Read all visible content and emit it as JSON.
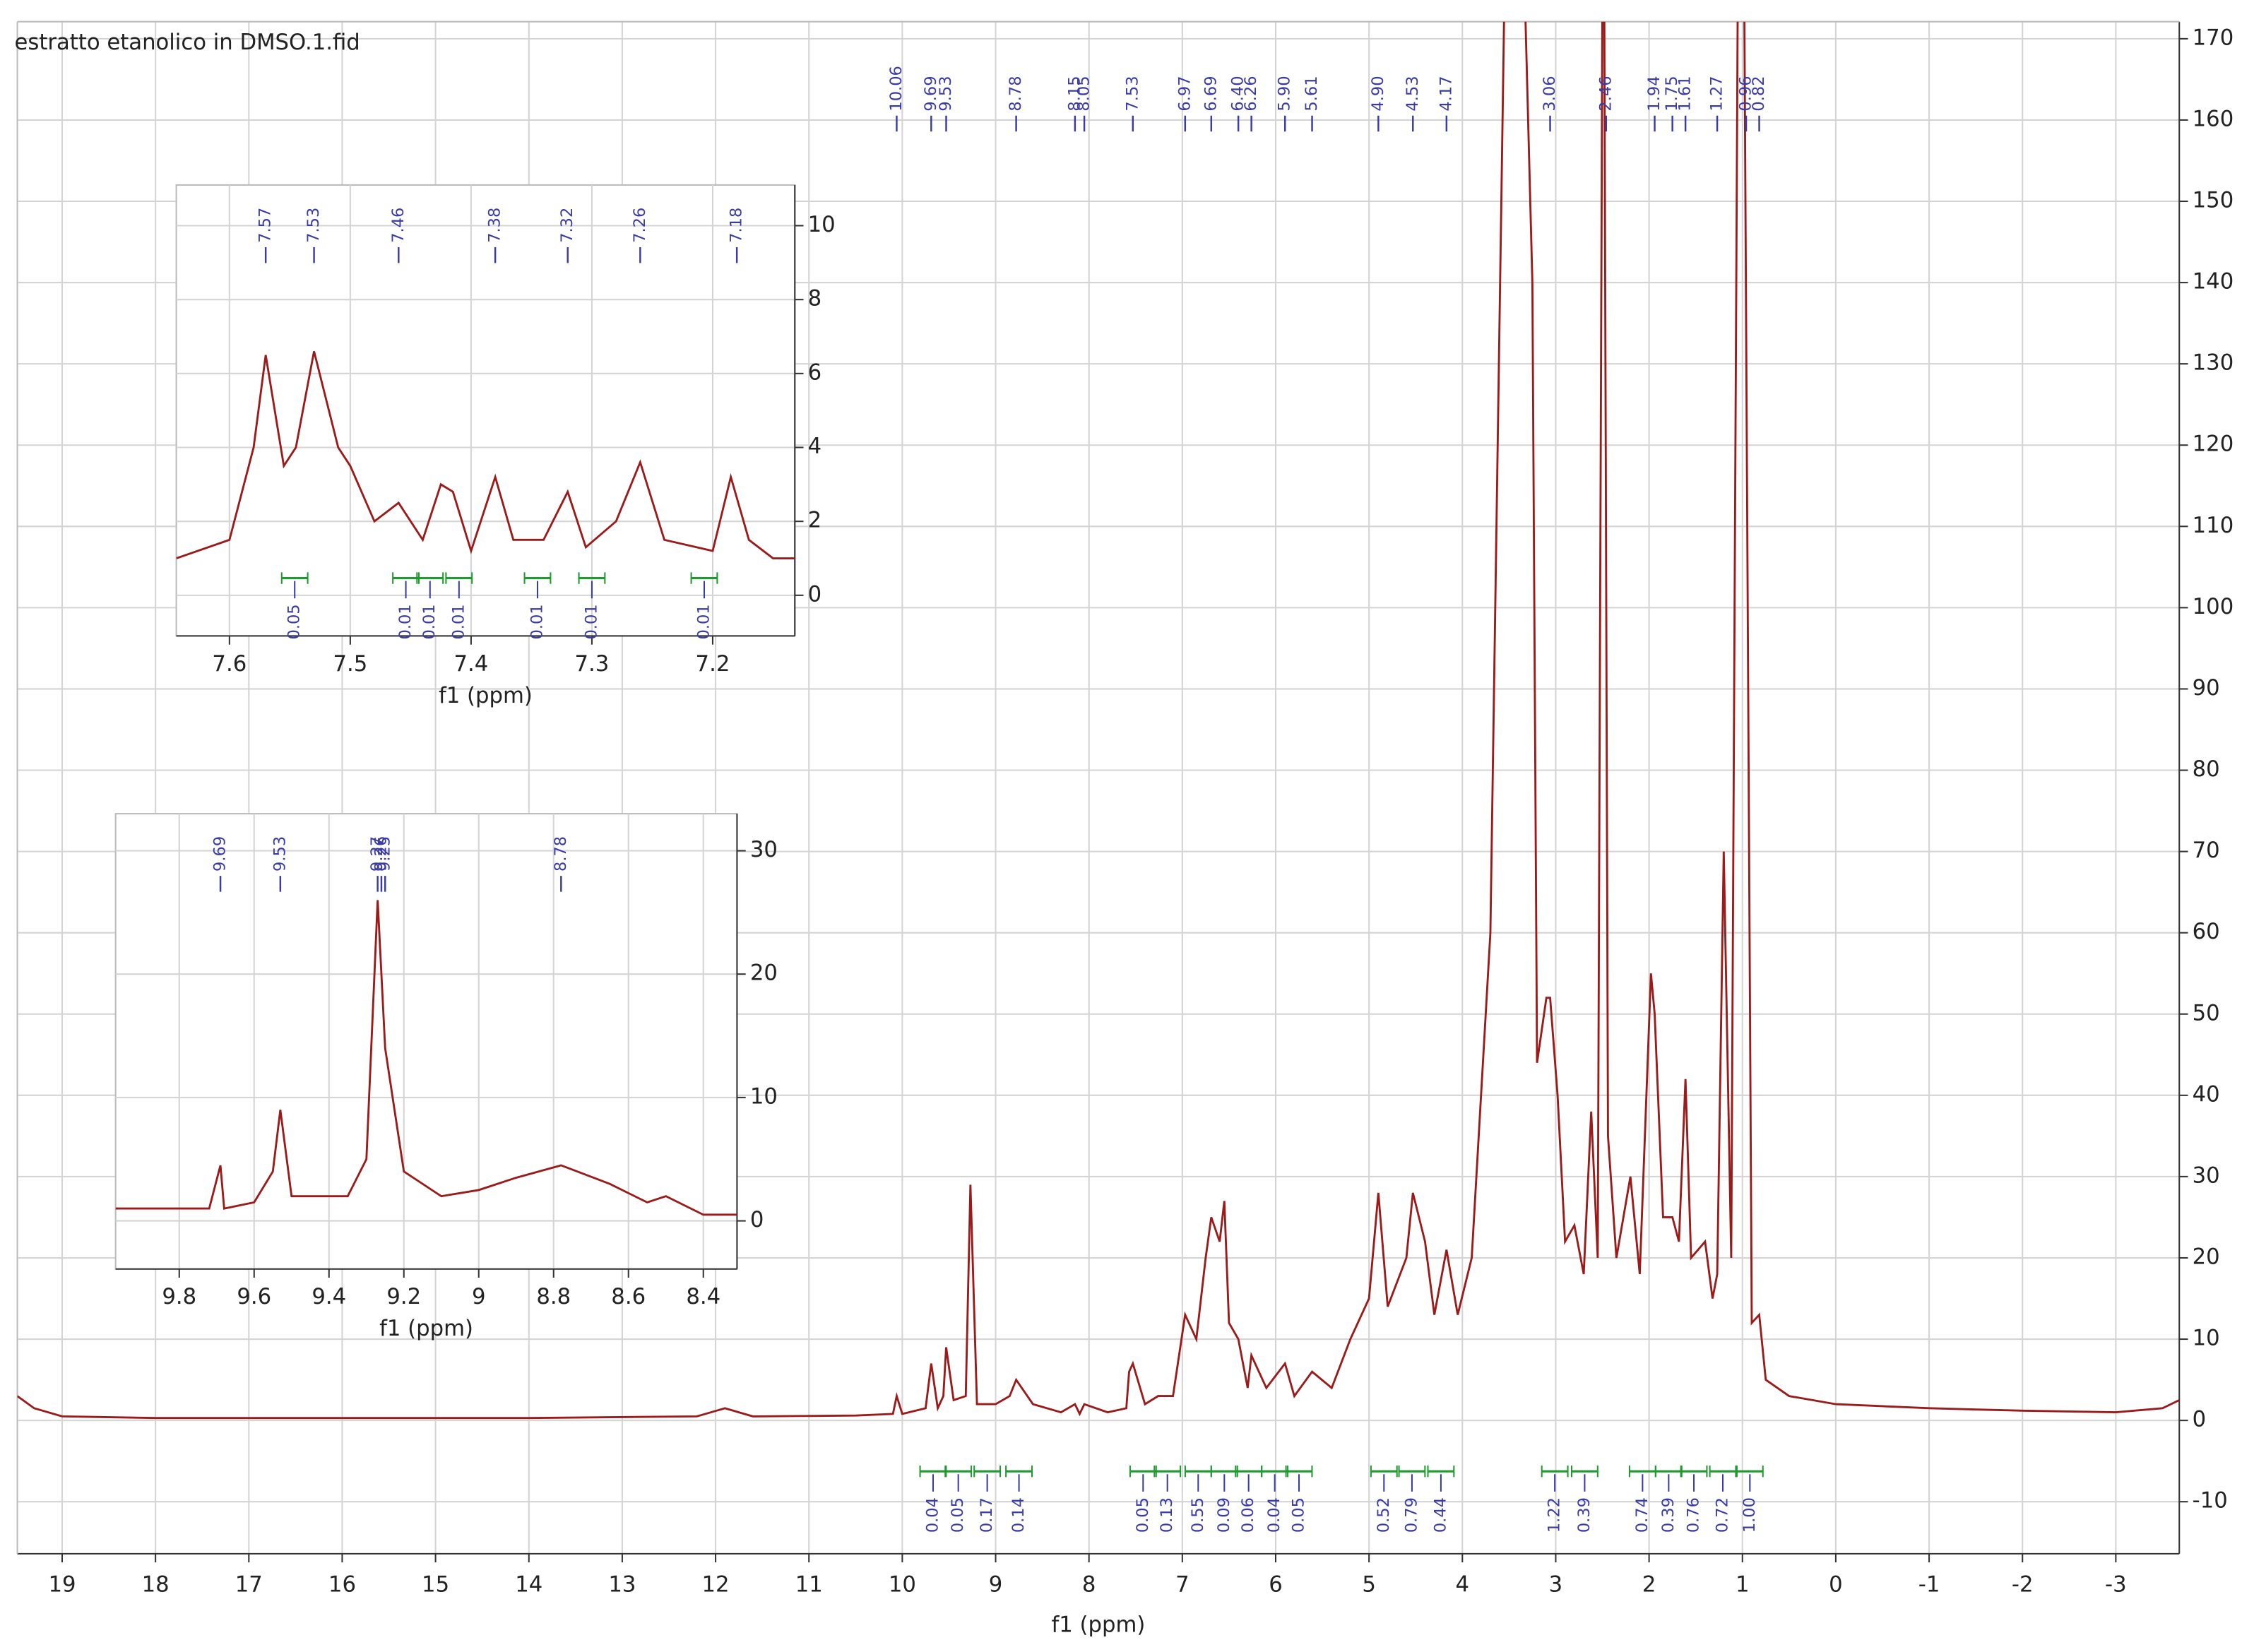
{
  "chart_data": [
    {
      "type": "line",
      "title": "estratto etanolico in DMSO.1.fid",
      "xlabel": "f1 (ppm)",
      "xlim": [
        19.48,
        -3.68
      ],
      "ylim": [
        -16.4,
        172.1
      ],
      "xticks": [
        19,
        18,
        17,
        16,
        15,
        14,
        13,
        12,
        11,
        10,
        9,
        8,
        7,
        6,
        5,
        4,
        3,
        2,
        1,
        0,
        -1,
        -2,
        -3
      ],
      "yticks": [
        -10,
        0,
        10,
        20,
        30,
        40,
        50,
        60,
        70,
        80,
        90,
        100,
        110,
        120,
        130,
        140,
        150,
        160,
        170
      ],
      "grid": true,
      "color": "#9b1b1b",
      "x": [
        19.48,
        19.3,
        19.0,
        18,
        16,
        14,
        12.2,
        11.9,
        11.6,
        10.5,
        10.1,
        10.06,
        10.0,
        9.75,
        9.69,
        9.62,
        9.56,
        9.53,
        9.45,
        9.32,
        9.27,
        9.2,
        9.0,
        8.85,
        8.78,
        8.6,
        8.3,
        8.15,
        8.1,
        8.05,
        7.8,
        7.6,
        7.57,
        7.53,
        7.4,
        7.26,
        7.1,
        6.97,
        6.85,
        6.75,
        6.69,
        6.6,
        6.55,
        6.5,
        6.4,
        6.3,
        6.26,
        6.1,
        5.9,
        5.8,
        5.61,
        5.4,
        5.2,
        5.0,
        4.9,
        4.8,
        4.6,
        4.53,
        4.4,
        4.3,
        4.17,
        4.05,
        3.9,
        3.7,
        3.55,
        3.33,
        3.25,
        3.2,
        3.1,
        3.06,
        2.98,
        2.9,
        2.8,
        2.7,
        2.62,
        2.55,
        2.5,
        2.48,
        2.44,
        2.35,
        2.2,
        2.1,
        1.98,
        1.94,
        1.85,
        1.75,
        1.68,
        1.61,
        1.55,
        1.4,
        1.32,
        1.27,
        1.2,
        1.12,
        1.05,
        0.98,
        0.9,
        0.82,
        0.75,
        0.5,
        0,
        -1,
        -2,
        -3,
        -3.5,
        -3.68
      ],
      "values": [
        3,
        1.5,
        0.5,
        0.3,
        0.3,
        0.3,
        0.5,
        1.5,
        0.5,
        0.6,
        0.8,
        3,
        0.8,
        1.5,
        7,
        1.5,
        3,
        9,
        2.5,
        3,
        29,
        2,
        2,
        3,
        5,
        2,
        1,
        2,
        0.8,
        2,
        1,
        1.5,
        6,
        7,
        2,
        3,
        3,
        13,
        10,
        20,
        25,
        22,
        27,
        12,
        10,
        4,
        8,
        4,
        7,
        3,
        6,
        4,
        10,
        15,
        28,
        14,
        20,
        28,
        22,
        13,
        21,
        13,
        20,
        60,
        175,
        175,
        140,
        44,
        52,
        52,
        40,
        22,
        24,
        18,
        38,
        20,
        175,
        175,
        35,
        20,
        30,
        18,
        55,
        50,
        25,
        25,
        22,
        42,
        20,
        22,
        15,
        18,
        70,
        20,
        175,
        175,
        12,
        13,
        5,
        3,
        2,
        1.5,
        1.2,
        1,
        1.5,
        2.5
      ],
      "peaks": {
        "values": [
          10.06,
          9.69,
          9.53,
          8.78,
          8.15,
          8.05,
          7.53,
          6.97,
          6.69,
          6.4,
          6.26,
          5.9,
          5.61,
          4.9,
          4.53,
          4.17,
          3.06,
          2.46,
          1.94,
          1.75,
          1.61,
          1.27,
          0.96,
          0.82
        ],
        "value_labels": [
          "10.06",
          "9.69",
          "9.53",
          "8.78",
          "8.15",
          "8.05",
          "7.53",
          "6.97",
          "6.69",
          "6.40",
          "6.26",
          "5.90",
          "5.61",
          "4.90",
          "4.53",
          "4.17",
          "3.06",
          "2.46",
          "1.94",
          "1.75",
          "1.61",
          "1.27",
          "0.96",
          "0.82"
        ]
      },
      "integrals": {
        "x": [
          9.67,
          9.4,
          9.09,
          8.75,
          7.42,
          7.16,
          6.83,
          6.55,
          6.29,
          6.01,
          5.75,
          4.84,
          4.54,
          4.23,
          3.01,
          2.69,
          2.07,
          1.79,
          1.52,
          1.21,
          0.92
        ],
        "values": [
          0.04,
          0.05,
          0.17,
          0.14,
          0.05,
          0.13,
          0.55,
          0.09,
          0.06,
          0.04,
          0.05,
          0.52,
          0.79,
          0.44,
          1.22,
          0.39,
          0.74,
          0.39,
          0.76,
          0.72,
          1.0
        ],
        "value_labels": [
          "0.04",
          "0.05",
          "0.17",
          "0.14",
          "0.05",
          "0.13",
          "0.55",
          "0.09",
          "0.06",
          "0.04",
          "0.05",
          "0.52",
          "0.79",
          "0.44",
          "1.22",
          "0.39",
          "0.74",
          "0.39",
          "0.76",
          "0.72",
          "1.00"
        ]
      }
    },
    {
      "type": "line",
      "xlabel": "f1 (ppm)",
      "xlim": [
        7.644,
        7.132
      ],
      "ylim": [
        -1.1,
        11.1
      ],
      "xticks": [
        7.6,
        7.5,
        7.4,
        7.3,
        7.2
      ],
      "yticks": [
        0,
        2,
        4,
        6,
        8,
        10
      ],
      "grid": true,
      "color": "#9b1b1b",
      "x": [
        7.644,
        7.6,
        7.58,
        7.57,
        7.555,
        7.545,
        7.53,
        7.51,
        7.5,
        7.48,
        7.46,
        7.44,
        7.425,
        7.415,
        7.4,
        7.38,
        7.365,
        7.34,
        7.32,
        7.305,
        7.28,
        7.26,
        7.24,
        7.2,
        7.185,
        7.17,
        7.15,
        7.132
      ],
      "values": [
        1,
        1.5,
        4,
        6.5,
        3.5,
        4,
        6.6,
        4,
        3.5,
        2,
        2.5,
        1.5,
        3,
        2.8,
        1.2,
        3.2,
        1.5,
        1.5,
        2.8,
        1.3,
        2,
        3.6,
        1.5,
        1.2,
        3.2,
        1.5,
        1,
        1
      ],
      "peaks": {
        "values": [
          7.57,
          7.53,
          7.46,
          7.38,
          7.32,
          7.26,
          7.18
        ],
        "value_labels": [
          "7.57",
          "7.53",
          "7.46",
          "7.38",
          "7.32",
          "7.26",
          "7.18"
        ]
      },
      "integrals": {
        "x": [
          7.546,
          7.454,
          7.434,
          7.41,
          7.345,
          7.3,
          7.207
        ],
        "values": [
          0.05,
          0.01,
          0.01,
          0.01,
          0.01,
          0.01,
          0.01
        ],
        "value_labels": [
          "0.05",
          "0.01",
          "0.01",
          "0.01",
          "0.01",
          "0.01",
          "0.01"
        ]
      }
    },
    {
      "type": "line",
      "xlabel": "f1 (ppm)",
      "xlim": [
        9.97,
        8.31
      ],
      "ylim": [
        -3.9,
        33
      ],
      "xticks": [
        9.8,
        9.6,
        9.4,
        9.2,
        9.0,
        8.8,
        8.6,
        8.4
      ],
      "yticks": [
        0,
        10,
        20,
        30
      ],
      "grid": true,
      "color": "#9b1b1b",
      "x": [
        9.97,
        9.9,
        9.72,
        9.69,
        9.68,
        9.6,
        9.55,
        9.53,
        9.5,
        9.35,
        9.3,
        9.27,
        9.25,
        9.2,
        9.1,
        9.0,
        8.9,
        8.78,
        8.65,
        8.55,
        8.5,
        8.4,
        8.31
      ],
      "values": [
        1,
        1,
        1,
        4.5,
        1,
        1.5,
        4,
        9,
        2,
        2,
        5,
        26,
        14,
        4,
        2,
        2.5,
        3.5,
        4.5,
        3,
        1.5,
        2,
        0.5,
        0.5
      ],
      "peaks": {
        "values": [
          9.69,
          9.53,
          9.27,
          9.26,
          9.25,
          8.78
        ],
        "value_labels": [
          "9.69",
          "9.53",
          "9.27",
          "9.26",
          "9.25",
          "8.78"
        ]
      }
    }
  ]
}
